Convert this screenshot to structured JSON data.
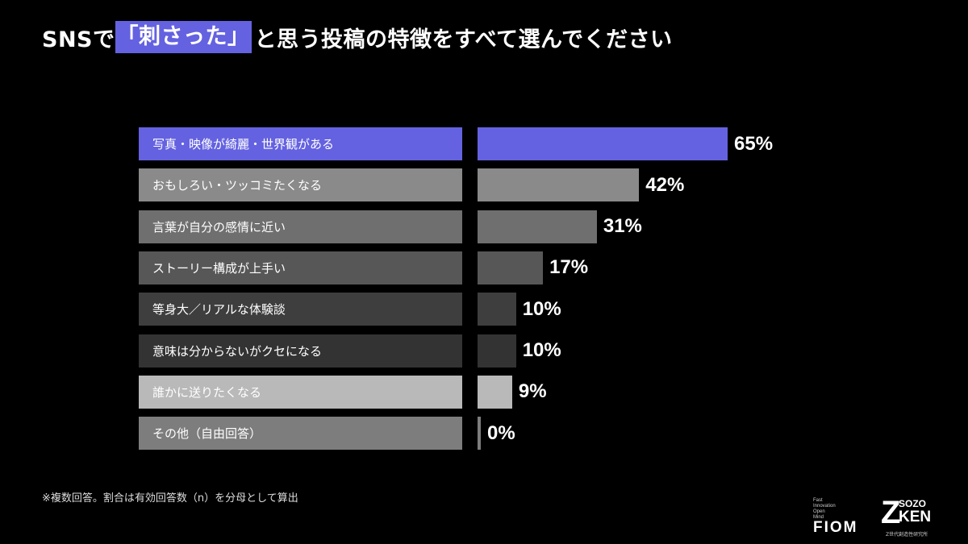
{
  "title": {
    "prefix": "SNSで",
    "highlight": "「刺さった」",
    "suffix": "と思う投稿の特徴をすべて選んでください",
    "highlight_color": "#6462e0"
  },
  "chart_data": {
    "type": "bar",
    "orientation": "horizontal",
    "categories": [
      "写真・映像が綺麗・世界観がある",
      "おもしろい・ツッコミたくなる",
      "言葉が自分の感情に近い",
      "ストーリー構成が上手い",
      "等身大／リアルな体験談",
      "意味は分からないがクセになる",
      "誰かに送りたくなる",
      "その他（自由回答）"
    ],
    "values": [
      65,
      42,
      31,
      17,
      10,
      10,
      9,
      0
    ],
    "value_labels": [
      "65%",
      "42%",
      "31%",
      "17%",
      "10%",
      "10%",
      "9%",
      "0%"
    ],
    "colors": [
      "#6462e0",
      "#8a8a8a",
      "#6f6f6f",
      "#575757",
      "#3e3e3e",
      "#333333",
      "#b9b9b9",
      "#7d7d7d"
    ],
    "xlim": [
      0,
      100
    ],
    "legend": "none",
    "grid": false
  },
  "footnote": "※複数回答。割合は有効回答数（n）を分母として算出",
  "logos": {
    "fiom": {
      "small_lines": [
        "Fast",
        "Innovation",
        "Open",
        "Mind"
      ],
      "main": "FIOM"
    },
    "sozoken": {
      "z": "Z",
      "top": "SOZO",
      "main": "KEN",
      "sub": "Z世代創造性研究所"
    }
  }
}
